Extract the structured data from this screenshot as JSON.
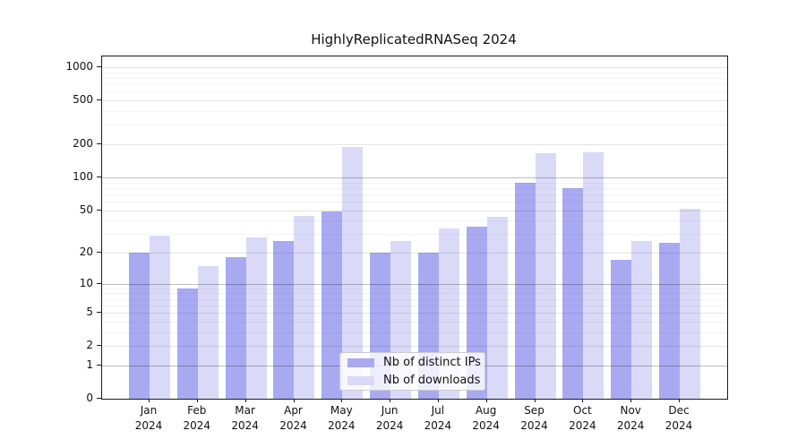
{
  "title": "HighlyReplicatedRNASeq 2024",
  "legend": {
    "items": [
      {
        "label": "Nb of distinct IPs",
        "color": "#a9a9f2"
      },
      {
        "label": "Nb of downloads",
        "color": "#dadaf8"
      }
    ]
  },
  "chart_data": {
    "type": "bar",
    "title": "HighlyReplicatedRNASeq 2024",
    "categories": [
      "Jan",
      "Feb",
      "Mar",
      "Apr",
      "May",
      "Jun",
      "Jul",
      "Aug",
      "Sep",
      "Oct",
      "Nov",
      "Dec"
    ],
    "xtick_year": "2024",
    "series": [
      {
        "name": "Nb of distinct IPs",
        "color": "#a9a9f2",
        "values": [
          20,
          9,
          18,
          26,
          49,
          20,
          20,
          35,
          90,
          80,
          17,
          25
        ]
      },
      {
        "name": "Nb of downloads",
        "color": "#dadaf8",
        "values": [
          29,
          15,
          28,
          44,
          190,
          26,
          34,
          43,
          165,
          170,
          26,
          51
        ]
      }
    ],
    "yscale": "log1p",
    "yticks": [
      0,
      1,
      2,
      5,
      10,
      20,
      50,
      100,
      200,
      500,
      1000
    ],
    "minor_tick_multiples": [
      3,
      4,
      6,
      7,
      8,
      9
    ],
    "ylim": [
      0,
      1253
    ],
    "xlabel": "",
    "ylabel": "",
    "grid": true,
    "legend_position": "lower center-right inside plot"
  }
}
